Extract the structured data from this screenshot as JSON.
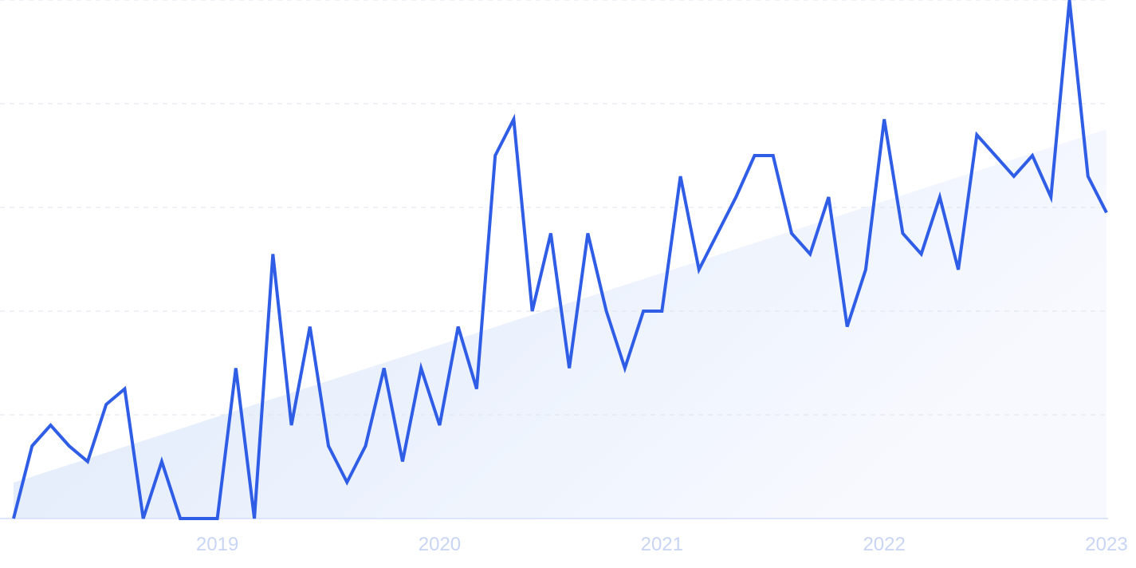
{
  "chart_data": {
    "type": "line",
    "categories": [
      null,
      null,
      null,
      null,
      null,
      null,
      null,
      null,
      null,
      null,
      null,
      "2019",
      null,
      null,
      null,
      null,
      null,
      null,
      null,
      null,
      null,
      null,
      null,
      "2020",
      null,
      null,
      null,
      null,
      null,
      null,
      null,
      null,
      null,
      null,
      null,
      "2021",
      null,
      null,
      null,
      null,
      null,
      null,
      null,
      null,
      null,
      null,
      null,
      "2022",
      null,
      null,
      null,
      null,
      null,
      null,
      null,
      null,
      null,
      null,
      null,
      "2023"
    ],
    "series": [
      {
        "color": "#2f5de6",
        "values": [
          0,
          14,
          18,
          14,
          11,
          22,
          25,
          0,
          11,
          0,
          0,
          0,
          29,
          0,
          51,
          18,
          37,
          14,
          7,
          14,
          29,
          11,
          29,
          18,
          37,
          25,
          70,
          77,
          40,
          55,
          29,
          55,
          40,
          29,
          40,
          40,
          66,
          48,
          55,
          62,
          70,
          70,
          55,
          51,
          62,
          37,
          48,
          77,
          55,
          51,
          62,
          48,
          74,
          70,
          66,
          70,
          62,
          100,
          66,
          59
        ]
      }
    ],
    "ylim": [
      0,
      100
    ],
    "yticks": [
      0,
      20,
      40,
      60,
      80,
      100
    ],
    "grid": true
  }
}
